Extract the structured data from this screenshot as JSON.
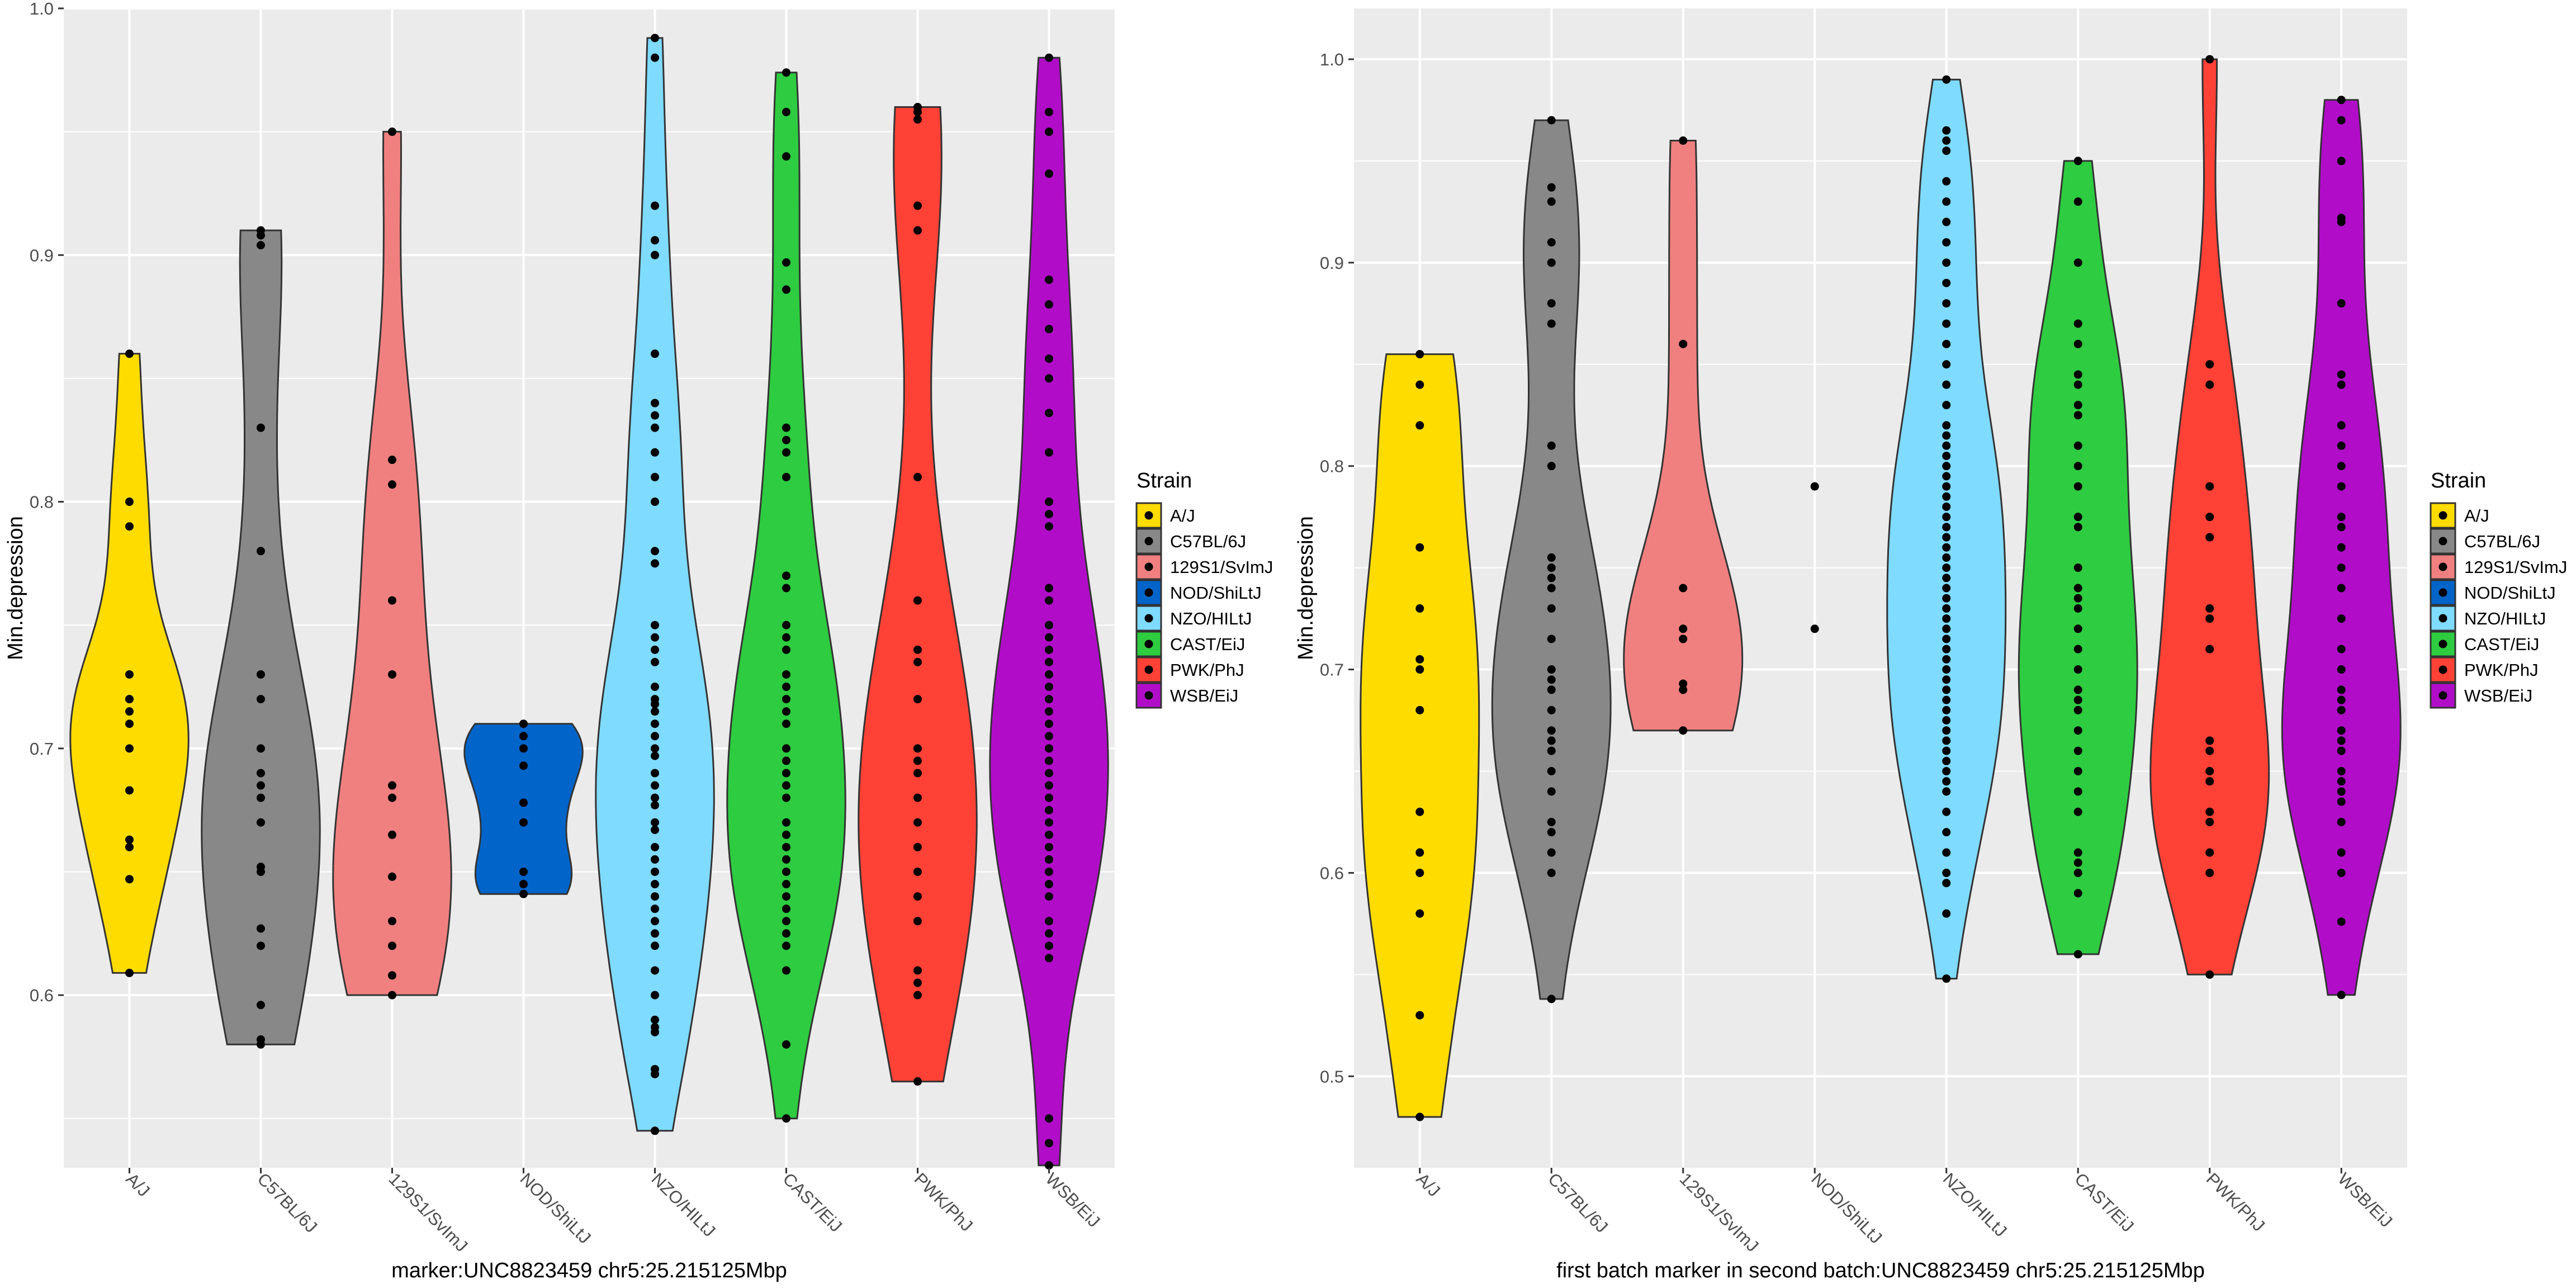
{
  "legend_title": "Strain",
  "strains": [
    "A/J",
    "C57BL/6J",
    "129S1/SvImJ",
    "NOD/ShiLtJ",
    "NZO/HILtJ",
    "CAST/EiJ",
    "PWK/PhJ",
    "WSB/EiJ"
  ],
  "colors": {
    "A/J": "#FFDC00",
    "C57BL/6J": "#888888",
    "129S1/SvImJ": "#F08080",
    "NOD/ShiLtJ": "#0064C9",
    "NZO/HILtJ": "#7FDBFF",
    "CAST/EiJ": "#2ECC40",
    "PWK/PhJ": "#FF4136",
    "WSB/EiJ": "#B10DC9"
  },
  "chart_data": [
    {
      "type": "violin",
      "xlabel": "marker:UNC8823459 chr5:25.215125Mbp",
      "ylabel": "Min.depression",
      "ylim": [
        0.53,
        1.0
      ],
      "yticks": [
        0.6,
        0.7,
        0.8,
        0.9,
        1.0
      ],
      "ytick_labels": [
        "0.6",
        "0.7",
        "0.8",
        "0.9",
        "1.0"
      ],
      "categories": [
        "A/J",
        "C57BL/6J",
        "129S1/SvImJ",
        "NOD/ShiLtJ",
        "NZO/HILtJ",
        "CAST/EiJ",
        "PWK/PhJ",
        "WSB/EiJ"
      ],
      "legend_position": "right",
      "series": [
        {
          "name": "A/J",
          "values": [
            0.86,
            0.8,
            0.79,
            0.73,
            0.72,
            0.72,
            0.715,
            0.71,
            0.7,
            0.683,
            0.663,
            0.66,
            0.647,
            0.609
          ]
        },
        {
          "name": "C57BL/6J",
          "values": [
            0.91,
            0.908,
            0.904,
            0.83,
            0.78,
            0.73,
            0.72,
            0.7,
            0.69,
            0.685,
            0.68,
            0.67,
            0.652,
            0.65,
            0.627,
            0.62,
            0.596,
            0.582,
            0.58
          ]
        },
        {
          "name": "129S1/SvImJ",
          "values": [
            0.95,
            0.817,
            0.807,
            0.76,
            0.73,
            0.685,
            0.68,
            0.665,
            0.648,
            0.63,
            0.62,
            0.608,
            0.6
          ]
        },
        {
          "name": "NOD/ShiLtJ",
          "values": [
            0.71,
            0.705,
            0.7,
            0.693,
            0.678,
            0.67,
            0.65,
            0.645,
            0.641
          ]
        },
        {
          "name": "NZO/HILtJ",
          "values": [
            0.988,
            0.98,
            0.92,
            0.906,
            0.9,
            0.86,
            0.84,
            0.835,
            0.83,
            0.82,
            0.81,
            0.8,
            0.78,
            0.775,
            0.75,
            0.745,
            0.74,
            0.735,
            0.725,
            0.72,
            0.718,
            0.715,
            0.71,
            0.705,
            0.7,
            0.697,
            0.69,
            0.685,
            0.68,
            0.677,
            0.67,
            0.667,
            0.66,
            0.655,
            0.65,
            0.645,
            0.64,
            0.635,
            0.63,
            0.625,
            0.62,
            0.61,
            0.6,
            0.59,
            0.587,
            0.585,
            0.57,
            0.568,
            0.545
          ]
        },
        {
          "name": "CAST/EiJ",
          "values": [
            0.974,
            0.958,
            0.94,
            0.897,
            0.886,
            0.83,
            0.825,
            0.82,
            0.81,
            0.77,
            0.765,
            0.75,
            0.745,
            0.74,
            0.73,
            0.725,
            0.72,
            0.715,
            0.71,
            0.7,
            0.695,
            0.69,
            0.685,
            0.68,
            0.67,
            0.665,
            0.66,
            0.655,
            0.65,
            0.645,
            0.64,
            0.635,
            0.63,
            0.625,
            0.62,
            0.61,
            0.58,
            0.55
          ]
        },
        {
          "name": "PWK/PhJ",
          "values": [
            0.96,
            0.958,
            0.955,
            0.92,
            0.91,
            0.81,
            0.76,
            0.74,
            0.735,
            0.72,
            0.7,
            0.695,
            0.69,
            0.68,
            0.67,
            0.66,
            0.65,
            0.64,
            0.63,
            0.61,
            0.605,
            0.6,
            0.565
          ]
        },
        {
          "name": "WSB/EiJ",
          "values": [
            0.98,
            0.958,
            0.95,
            0.933,
            0.89,
            0.88,
            0.87,
            0.858,
            0.85,
            0.836,
            0.82,
            0.8,
            0.795,
            0.79,
            0.765,
            0.76,
            0.75,
            0.745,
            0.74,
            0.735,
            0.73,
            0.725,
            0.72,
            0.715,
            0.71,
            0.705,
            0.7,
            0.695,
            0.69,
            0.685,
            0.68,
            0.675,
            0.67,
            0.665,
            0.66,
            0.655,
            0.65,
            0.645,
            0.64,
            0.63,
            0.625,
            0.62,
            0.615,
            0.55,
            0.54,
            0.531
          ]
        }
      ]
    },
    {
      "type": "violin",
      "xlabel": "first batch marker in second batch:UNC8823459 chr5:25.215125Mbp",
      "ylabel": "Min.depression",
      "ylim": [
        0.455,
        1.025
      ],
      "yticks": [
        0.5,
        0.6,
        0.7,
        0.8,
        0.9,
        1.0
      ],
      "ytick_labels": [
        "0.5",
        "0.6",
        "0.7",
        "0.8",
        "0.9",
        "1.0"
      ],
      "categories": [
        "A/J",
        "C57BL/6J",
        "129S1/SvImJ",
        "NOD/ShiLtJ",
        "NZO/HILtJ",
        "CAST/EiJ",
        "PWK/PhJ",
        "WSB/EiJ"
      ],
      "legend_position": "right",
      "series": [
        {
          "name": "A/J",
          "values": [
            0.855,
            0.84,
            0.82,
            0.76,
            0.73,
            0.705,
            0.7,
            0.68,
            0.63,
            0.61,
            0.6,
            0.58,
            0.53,
            0.48
          ]
        },
        {
          "name": "C57BL/6J",
          "values": [
            0.97,
            0.937,
            0.93,
            0.91,
            0.9,
            0.88,
            0.87,
            0.81,
            0.8,
            0.755,
            0.75,
            0.745,
            0.74,
            0.73,
            0.715,
            0.7,
            0.695,
            0.69,
            0.68,
            0.67,
            0.665,
            0.66,
            0.65,
            0.64,
            0.625,
            0.62,
            0.61,
            0.6,
            0.538
          ]
        },
        {
          "name": "129S1/SvImJ",
          "values": [
            0.96,
            0.86,
            0.74,
            0.72,
            0.715,
            0.693,
            0.69,
            0.67
          ]
        },
        {
          "name": "NOD/ShiLtJ",
          "values": [
            0.79,
            0.72
          ]
        },
        {
          "name": "NZO/HILtJ",
          "values": [
            0.99,
            0.965,
            0.96,
            0.955,
            0.94,
            0.93,
            0.92,
            0.91,
            0.9,
            0.89,
            0.88,
            0.87,
            0.86,
            0.85,
            0.84,
            0.83,
            0.82,
            0.815,
            0.81,
            0.805,
            0.8,
            0.795,
            0.79,
            0.785,
            0.78,
            0.775,
            0.77,
            0.765,
            0.76,
            0.755,
            0.75,
            0.745,
            0.74,
            0.735,
            0.73,
            0.725,
            0.72,
            0.715,
            0.71,
            0.705,
            0.7,
            0.695,
            0.69,
            0.685,
            0.68,
            0.675,
            0.67,
            0.665,
            0.66,
            0.655,
            0.65,
            0.645,
            0.64,
            0.63,
            0.62,
            0.61,
            0.6,
            0.595,
            0.58,
            0.548
          ]
        },
        {
          "name": "CAST/EiJ",
          "values": [
            0.95,
            0.93,
            0.9,
            0.87,
            0.86,
            0.845,
            0.84,
            0.83,
            0.825,
            0.81,
            0.8,
            0.79,
            0.775,
            0.77,
            0.75,
            0.74,
            0.735,
            0.73,
            0.72,
            0.71,
            0.7,
            0.69,
            0.685,
            0.68,
            0.67,
            0.66,
            0.65,
            0.64,
            0.63,
            0.61,
            0.605,
            0.6,
            0.59,
            0.56
          ]
        },
        {
          "name": "PWK/PhJ",
          "values": [
            1.0,
            0.85,
            0.84,
            0.79,
            0.775,
            0.765,
            0.73,
            0.725,
            0.71,
            0.665,
            0.66,
            0.65,
            0.645,
            0.63,
            0.625,
            0.61,
            0.6,
            0.55
          ]
        },
        {
          "name": "WSB/EiJ",
          "values": [
            0.98,
            0.97,
            0.95,
            0.922,
            0.92,
            0.88,
            0.845,
            0.84,
            0.82,
            0.81,
            0.8,
            0.79,
            0.775,
            0.77,
            0.76,
            0.75,
            0.74,
            0.725,
            0.71,
            0.7,
            0.69,
            0.685,
            0.68,
            0.67,
            0.665,
            0.66,
            0.65,
            0.645,
            0.64,
            0.635,
            0.625,
            0.61,
            0.6,
            0.576,
            0.54
          ]
        }
      ]
    }
  ]
}
